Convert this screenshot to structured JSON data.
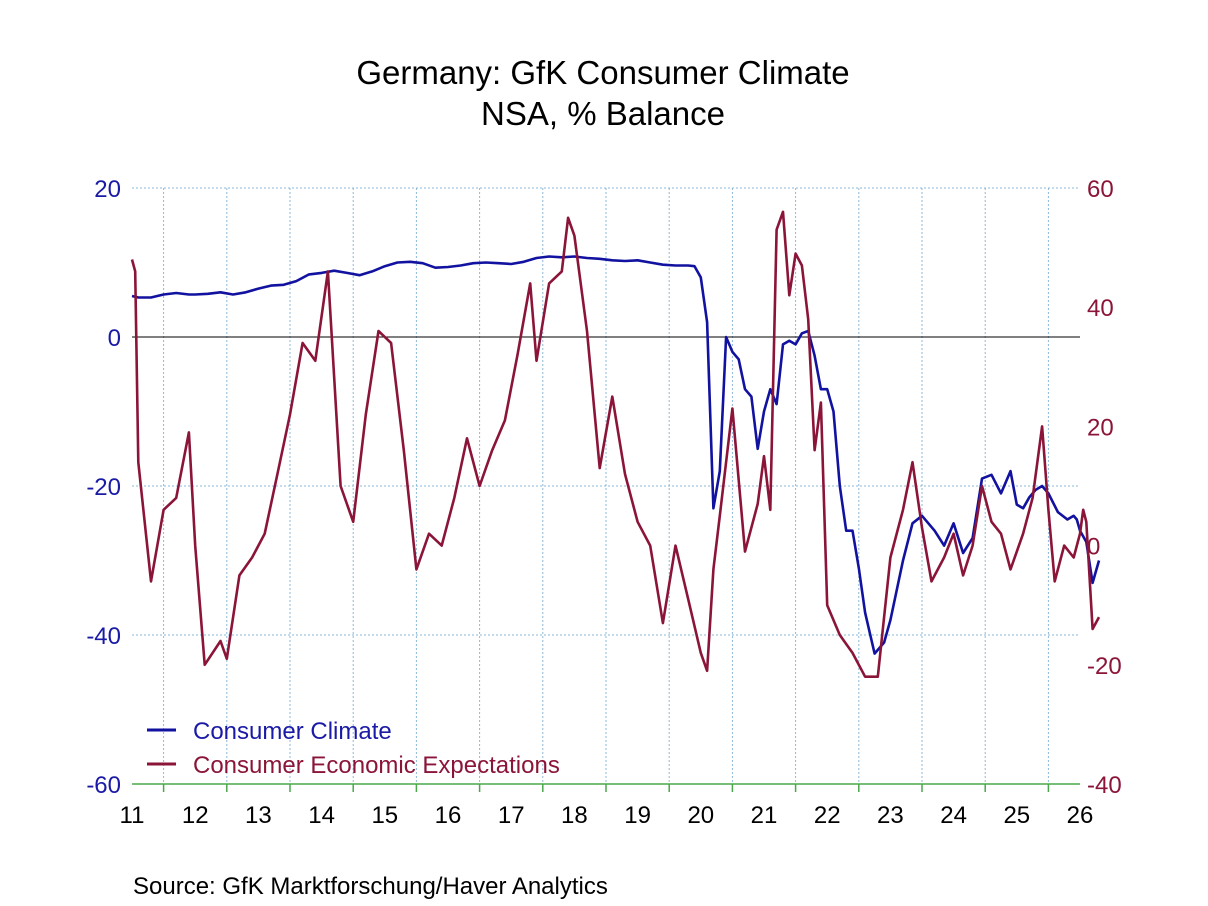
{
  "chart_data": {
    "type": "line",
    "title": "Germany: GfK Consumer Climate",
    "subtitle": "NSA, % Balance",
    "source": "Source:  GfK Marktforschung/Haver Analytics",
    "x_ticks": [
      "11",
      "12",
      "13",
      "14",
      "15",
      "16",
      "17",
      "18",
      "19",
      "20",
      "21",
      "22",
      "23",
      "24",
      "25",
      "26"
    ],
    "x_range": [
      2011.0,
      2026.0
    ],
    "y_left": {
      "range": [
        -60,
        20
      ],
      "ticks": [
        "20",
        "0",
        "-20",
        "-40",
        "-60"
      ],
      "tick_values": [
        20,
        0,
        -20,
        -40,
        -60
      ]
    },
    "y_right": {
      "range": [
        -40,
        60
      ],
      "ticks": [
        "60",
        "40",
        "20",
        "0",
        "-20",
        "-40"
      ],
      "tick_values": [
        60,
        40,
        20,
        0,
        -20,
        -40
      ]
    },
    "grid": true,
    "zero_line": true,
    "legend_position": "bottom-left",
    "colors": {
      "climate": "#1212a0",
      "expectations": "#8b1538",
      "grid": "#8ab8d8",
      "left_axis": "#1a1aa6",
      "right_axis": "#8b1538"
    },
    "series": [
      {
        "name": "Consumer Climate",
        "axis": "left",
        "points": [
          [
            2011.0,
            5.5
          ],
          [
            2011.1,
            5.3
          ],
          [
            2011.3,
            5.3
          ],
          [
            2011.5,
            5.7
          ],
          [
            2011.7,
            5.9
          ],
          [
            2011.9,
            5.7
          ],
          [
            2012.0,
            5.7
          ],
          [
            2012.2,
            5.8
          ],
          [
            2012.4,
            6.0
          ],
          [
            2012.6,
            5.7
          ],
          [
            2012.8,
            6.0
          ],
          [
            2013.0,
            6.5
          ],
          [
            2013.2,
            6.9
          ],
          [
            2013.4,
            7.0
          ],
          [
            2013.6,
            7.5
          ],
          [
            2013.8,
            8.4
          ],
          [
            2014.0,
            8.6
          ],
          [
            2014.2,
            8.9
          ],
          [
            2014.4,
            8.6
          ],
          [
            2014.6,
            8.3
          ],
          [
            2014.8,
            8.8
          ],
          [
            2015.0,
            9.5
          ],
          [
            2015.2,
            10.0
          ],
          [
            2015.4,
            10.1
          ],
          [
            2015.6,
            9.9
          ],
          [
            2015.8,
            9.3
          ],
          [
            2016.0,
            9.4
          ],
          [
            2016.2,
            9.6
          ],
          [
            2016.4,
            9.9
          ],
          [
            2016.6,
            10.0
          ],
          [
            2016.8,
            9.9
          ],
          [
            2017.0,
            9.8
          ],
          [
            2017.2,
            10.1
          ],
          [
            2017.4,
            10.6
          ],
          [
            2017.6,
            10.8
          ],
          [
            2017.8,
            10.7
          ],
          [
            2018.0,
            10.8
          ],
          [
            2018.2,
            10.6
          ],
          [
            2018.4,
            10.5
          ],
          [
            2018.6,
            10.3
          ],
          [
            2018.8,
            10.2
          ],
          [
            2019.0,
            10.3
          ],
          [
            2019.2,
            10.0
          ],
          [
            2019.4,
            9.7
          ],
          [
            2019.6,
            9.6
          ],
          [
            2019.8,
            9.6
          ],
          [
            2019.9,
            9.5
          ],
          [
            2020.0,
            8.0
          ],
          [
            2020.1,
            2.0
          ],
          [
            2020.2,
            -23.0
          ],
          [
            2020.3,
            -18.0
          ],
          [
            2020.4,
            0.0
          ],
          [
            2020.5,
            -2.0
          ],
          [
            2020.6,
            -3.0
          ],
          [
            2020.7,
            -7.0
          ],
          [
            2020.8,
            -8.0
          ],
          [
            2020.9,
            -15.0
          ],
          [
            2021.0,
            -10.0
          ],
          [
            2021.1,
            -7.0
          ],
          [
            2021.2,
            -9.0
          ],
          [
            2021.3,
            -1.0
          ],
          [
            2021.4,
            -0.5
          ],
          [
            2021.5,
            -1.0
          ],
          [
            2021.6,
            0.5
          ],
          [
            2021.7,
            0.8
          ],
          [
            2021.8,
            -2.5
          ],
          [
            2021.9,
            -7.0
          ],
          [
            2022.0,
            -7.0
          ],
          [
            2022.1,
            -10.0
          ],
          [
            2022.2,
            -20.0
          ],
          [
            2022.3,
            -26.0
          ],
          [
            2022.4,
            -26.0
          ],
          [
            2022.5,
            -31.0
          ],
          [
            2022.6,
            -37.0
          ],
          [
            2022.75,
            -42.5
          ],
          [
            2022.9,
            -41.0
          ],
          [
            2023.0,
            -38.0
          ],
          [
            2023.2,
            -30.0
          ],
          [
            2023.35,
            -25.0
          ],
          [
            2023.5,
            -24.0
          ],
          [
            2023.7,
            -26.0
          ],
          [
            2023.85,
            -28.0
          ],
          [
            2024.0,
            -25.0
          ],
          [
            2024.15,
            -29.0
          ],
          [
            2024.3,
            -27.0
          ],
          [
            2024.45,
            -19.0
          ],
          [
            2024.6,
            -18.5
          ],
          [
            2024.75,
            -21.0
          ],
          [
            2024.9,
            -18.0
          ],
          [
            2025.0,
            -22.5
          ],
          [
            2025.1,
            -23.0
          ],
          [
            2025.2,
            -21.5
          ],
          [
            2025.3,
            -20.5
          ],
          [
            2025.4,
            -20.0
          ],
          [
            2025.5,
            -21.0
          ],
          [
            2025.65,
            -23.5
          ],
          [
            2025.8,
            -24.5
          ],
          [
            2025.9,
            -24.0
          ],
          [
            2025.95,
            -24.5
          ],
          [
            2026.0,
            -26.0
          ],
          [
            2026.1,
            -27.5
          ],
          [
            2026.2,
            -33.0
          ],
          [
            2026.3,
            -30.0
          ]
        ]
      },
      {
        "name": "Consumer Economic Expectations",
        "axis": "right",
        "points": [
          [
            2011.0,
            48.0
          ],
          [
            2011.05,
            46.0
          ],
          [
            2011.1,
            14.0
          ],
          [
            2011.3,
            -6.0
          ],
          [
            2011.5,
            6.0
          ],
          [
            2011.7,
            8.0
          ],
          [
            2011.9,
            19.0
          ],
          [
            2012.0,
            0.0
          ],
          [
            2012.15,
            -20.0
          ],
          [
            2012.4,
            -16.0
          ],
          [
            2012.5,
            -19.0
          ],
          [
            2012.7,
            -5.0
          ],
          [
            2012.9,
            -2.0
          ],
          [
            2013.1,
            2.0
          ],
          [
            2013.3,
            12.0
          ],
          [
            2013.5,
            22.0
          ],
          [
            2013.7,
            34.0
          ],
          [
            2013.9,
            31.0
          ],
          [
            2014.1,
            46.0
          ],
          [
            2014.3,
            10.0
          ],
          [
            2014.5,
            4.0
          ],
          [
            2014.7,
            22.0
          ],
          [
            2014.9,
            36.0
          ],
          [
            2015.1,
            34.0
          ],
          [
            2015.3,
            16.0
          ],
          [
            2015.5,
            -4.0
          ],
          [
            2015.7,
            2.0
          ],
          [
            2015.9,
            0.0
          ],
          [
            2016.1,
            8.0
          ],
          [
            2016.3,
            18.0
          ],
          [
            2016.5,
            10.0
          ],
          [
            2016.7,
            16.0
          ],
          [
            2016.9,
            21.0
          ],
          [
            2017.1,
            32.0
          ],
          [
            2017.3,
            44.0
          ],
          [
            2017.4,
            31.0
          ],
          [
            2017.6,
            44.0
          ],
          [
            2017.8,
            46.0
          ],
          [
            2017.9,
            55.0
          ],
          [
            2018.0,
            52.0
          ],
          [
            2018.2,
            36.0
          ],
          [
            2018.4,
            13.0
          ],
          [
            2018.6,
            25.0
          ],
          [
            2018.8,
            12.0
          ],
          [
            2019.0,
            4.0
          ],
          [
            2019.2,
            0.0
          ],
          [
            2019.4,
            -13.0
          ],
          [
            2019.6,
            0.0
          ],
          [
            2019.8,
            -9.0
          ],
          [
            2020.0,
            -18.0
          ],
          [
            2020.1,
            -21.0
          ],
          [
            2020.2,
            -4.0
          ],
          [
            2020.3,
            5.0
          ],
          [
            2020.5,
            23.0
          ],
          [
            2020.7,
            -1.0
          ],
          [
            2020.9,
            7.0
          ],
          [
            2021.0,
            15.0
          ],
          [
            2021.1,
            6.0
          ],
          [
            2021.2,
            53.0
          ],
          [
            2021.3,
            56.0
          ],
          [
            2021.4,
            42.0
          ],
          [
            2021.5,
            49.0
          ],
          [
            2021.6,
            47.0
          ],
          [
            2021.7,
            38.0
          ],
          [
            2021.8,
            16.0
          ],
          [
            2021.9,
            24.0
          ],
          [
            2022.0,
            -10.0
          ],
          [
            2022.2,
            -15.0
          ],
          [
            2022.4,
            -18.0
          ],
          [
            2022.6,
            -22.0
          ],
          [
            2022.8,
            -22.0
          ],
          [
            2023.0,
            -2.0
          ],
          [
            2023.2,
            6.0
          ],
          [
            2023.35,
            14.0
          ],
          [
            2023.5,
            3.0
          ],
          [
            2023.65,
            -6.0
          ],
          [
            2023.85,
            -2.0
          ],
          [
            2024.0,
            2.0
          ],
          [
            2024.15,
            -5.0
          ],
          [
            2024.3,
            0.0
          ],
          [
            2024.45,
            10.0
          ],
          [
            2024.6,
            4.0
          ],
          [
            2024.75,
            2.0
          ],
          [
            2024.9,
            -4.0
          ],
          [
            2025.1,
            2.0
          ],
          [
            2025.25,
            8.0
          ],
          [
            2025.4,
            20.0
          ],
          [
            2025.5,
            6.0
          ],
          [
            2025.6,
            -6.0
          ],
          [
            2025.75,
            0.0
          ],
          [
            2025.9,
            -2.0
          ],
          [
            2026.0,
            2.0
          ],
          [
            2026.05,
            6.0
          ],
          [
            2026.1,
            4.0
          ],
          [
            2026.2,
            -14.0
          ],
          [
            2026.3,
            -12.0
          ]
        ]
      }
    ]
  }
}
